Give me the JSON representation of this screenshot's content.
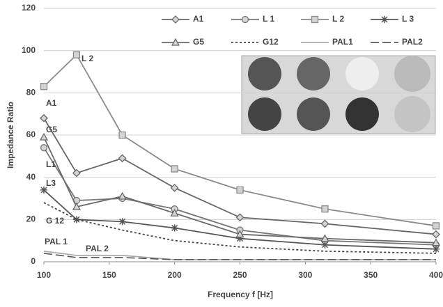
{
  "chart_data": {
    "type": "line",
    "x_label": "Frequency f [Hz]",
    "y_label": "Impedance Ratio",
    "x": [
      100,
      125,
      160,
      200,
      250,
      315,
      400
    ],
    "xlim": [
      100,
      400
    ],
    "xticks": [
      100,
      150,
      200,
      250,
      300,
      350,
      400
    ],
    "ylim": [
      0,
      120
    ],
    "yticks": [
      0,
      20,
      40,
      60,
      80,
      100,
      120
    ],
    "grid": true,
    "series": [
      {
        "name": "A1",
        "color": "#666666",
        "marker": "diamond",
        "dash": "solid",
        "values": [
          68,
          42,
          49,
          35,
          21,
          18,
          13
        ]
      },
      {
        "name": "L 1",
        "color": "#777777",
        "marker": "circle",
        "dash": "solid",
        "values": [
          54,
          29,
          30,
          25,
          15,
          10,
          8
        ]
      },
      {
        "name": "L 2",
        "color": "#8a8a8a",
        "marker": "square",
        "dash": "solid",
        "values": [
          83,
          98,
          60,
          44,
          34,
          25,
          17
        ]
      },
      {
        "name": "L 3",
        "color": "#555555",
        "marker": "star",
        "dash": "solid",
        "values": [
          34,
          20,
          19,
          16,
          11,
          8,
          6
        ]
      },
      {
        "name": "G5",
        "color": "#6a6a6a",
        "marker": "triangle",
        "dash": "solid",
        "values": [
          59,
          26,
          31,
          23,
          13,
          11,
          9
        ]
      },
      {
        "name": "G12",
        "color": "#444444",
        "marker": "none",
        "dash": "dotted",
        "values": [
          28,
          20,
          15,
          10,
          7,
          5,
          4
        ]
      },
      {
        "name": "PAL1",
        "color": "#aaaaaa",
        "marker": "none",
        "dash": "solid",
        "values": [
          5,
          3,
          3,
          1,
          1,
          1,
          1
        ]
      },
      {
        "name": "PAL2",
        "color": "#555555",
        "marker": "none",
        "dash": "longdash",
        "values": [
          4,
          2,
          2,
          1,
          1,
          1,
          1
        ]
      }
    ],
    "annotations": [
      "L 2",
      "A1",
      "G5",
      "L1",
      "L3",
      "G 12",
      "PAL 1",
      "PAL 2"
    ]
  }
}
